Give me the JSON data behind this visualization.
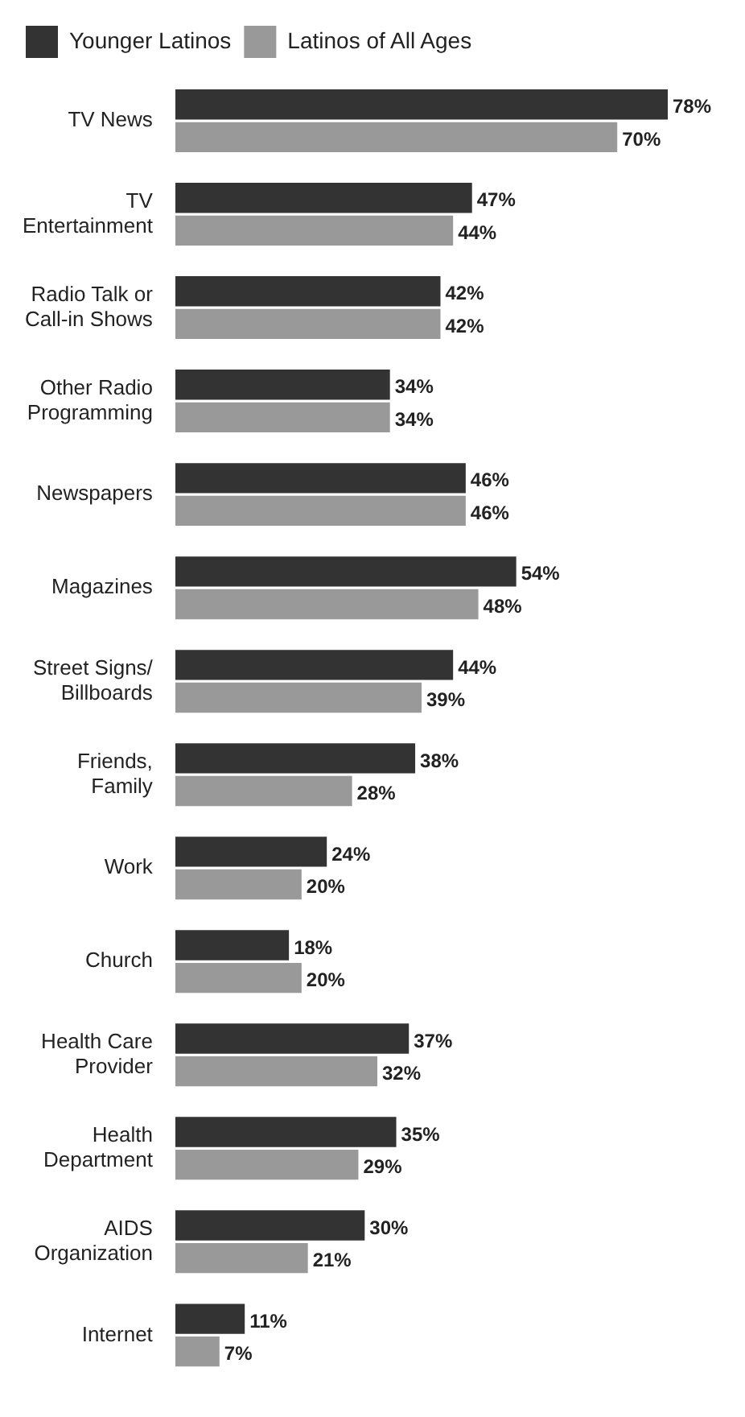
{
  "chart_data": {
    "type": "bar",
    "orientation": "horizontal",
    "categories": [
      "TV News",
      "TV\nEntertainment",
      "Radio Talk or\nCall-in Shows",
      "Other Radio\nProgramming",
      "Newspapers",
      "Magazines",
      "Street Signs/\nBillboards",
      "Friends,\nFamily",
      "Work",
      "Church",
      "Health Care\nProvider",
      "Health\nDepartment",
      "AIDS\nOrganization",
      "Internet"
    ],
    "series": [
      {
        "name": "Younger Latinos",
        "color": "#333333",
        "values": [
          78,
          47,
          42,
          34,
          46,
          54,
          44,
          38,
          24,
          18,
          37,
          35,
          30,
          11
        ],
        "value_labels": [
          "78%",
          "47%",
          "42%",
          "34%",
          "46%",
          "54%",
          "44%",
          "38%",
          "24%",
          "18%",
          "37%",
          "35%",
          "30%",
          "11%"
        ]
      },
      {
        "name": "Latinos of All Ages",
        "color": "#999999",
        "values": [
          70,
          44,
          42,
          34,
          46,
          48,
          39,
          28,
          20,
          20,
          32,
          29,
          21,
          7
        ],
        "value_labels": [
          "70%",
          "44%",
          "42%",
          "34%",
          "46%",
          "48%",
          "39%",
          "28%",
          "20%",
          "20%",
          "32%",
          "29%",
          "21%",
          "7%"
        ]
      }
    ],
    "legend": "top left"
  }
}
